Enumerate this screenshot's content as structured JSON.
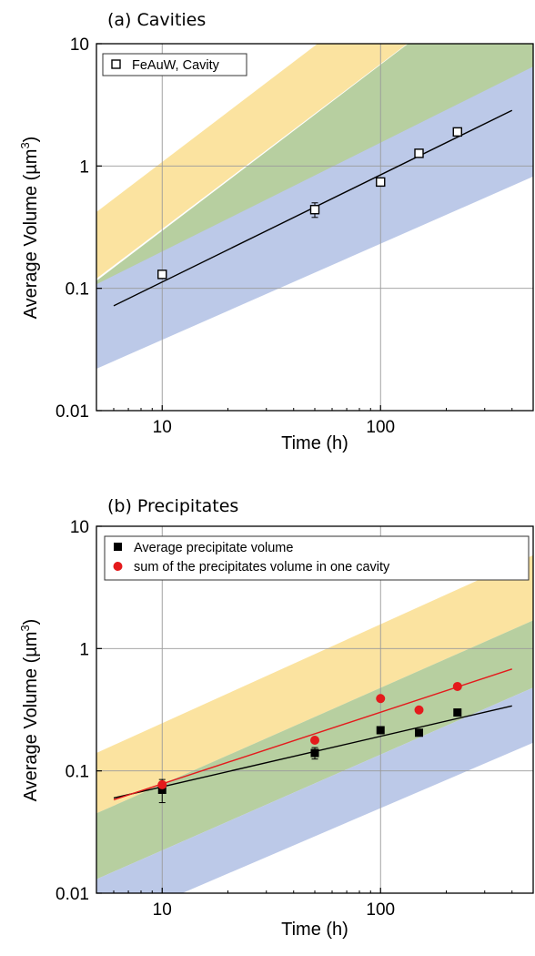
{
  "chart_data": [
    {
      "type": "scatter",
      "title": "(a) Cavities",
      "xlabel": "Time (h)",
      "ylabel_main": "Average Volume (",
      "ylabel_unit": "µm",
      "ylabel_sup": "3",
      "ylabel_close": ")",
      "xscale": "log",
      "yscale": "log",
      "xlim": [
        5,
        500
      ],
      "ylim": [
        0.01,
        10
      ],
      "xticks": [
        10,
        100
      ],
      "xtick_labels": [
        "10",
        "100"
      ],
      "yticks": [
        0.01,
        0.1,
        1,
        10
      ],
      "ytick_labels": [
        "0.01",
        "0.1",
        "1",
        "10"
      ],
      "grid": true,
      "legend_position": "top-left",
      "series": [
        {
          "name": "FeAuW, Cavity",
          "marker": "open-square",
          "color": "#000000",
          "x": [
            10,
            50,
            100,
            150,
            225
          ],
          "y": [
            0.13,
            0.44,
            0.74,
            1.27,
            1.9
          ],
          "yerr": [
            0,
            0.06,
            0.05,
            0.06,
            0.08
          ]
        }
      ],
      "fit_lines": [
        {
          "x": [
            6,
            400
          ],
          "y": [
            0.072,
            2.85
          ],
          "color": "#000000"
        }
      ],
      "bands": [
        {
          "color": "#fbe3a0",
          "lower": [
            [
              5,
              0.12
            ],
            [
              500,
              60
            ]
          ],
          "upper": [
            [
              5,
              0.42
            ],
            [
              500,
              220
            ]
          ]
        },
        {
          "color": "#b7cfa0",
          "lower": [
            [
              5,
              0.026
            ],
            [
              500,
              6.5
            ]
          ],
          "upper": [
            [
              5,
              0.115
            ],
            [
              500,
              60
            ]
          ]
        },
        {
          "color": "#bcc9e8",
          "lower": [
            [
              5,
              0.022
            ],
            [
              500,
              0.82
            ]
          ],
          "upper": [
            [
              5,
              0.108
            ],
            [
              500,
              6.5
            ]
          ]
        }
      ]
    },
    {
      "type": "scatter",
      "title": "(b) Precipitates",
      "xlabel": "Time (h)",
      "ylabel_main": "Average Volume (",
      "ylabel_unit": "µm",
      "ylabel_sup": "3",
      "ylabel_close": ")",
      "xscale": "log",
      "yscale": "log",
      "xlim": [
        5,
        500
      ],
      "ylim": [
        0.01,
        10
      ],
      "xticks": [
        10,
        100
      ],
      "xtick_labels": [
        "10",
        "100"
      ],
      "yticks": [
        0.01,
        0.1,
        1,
        10
      ],
      "ytick_labels": [
        "0.01",
        "0.1",
        "1",
        "10"
      ],
      "grid": true,
      "legend_position": "top",
      "series": [
        {
          "name": "Average precipitate volume",
          "marker": "filled-square",
          "color": "#000000",
          "x": [
            10,
            50,
            100,
            150,
            225
          ],
          "y": [
            0.07,
            0.14,
            0.215,
            0.205,
            0.3
          ],
          "yerr": [
            0.015,
            0.015,
            0.01,
            0.01,
            0.01
          ]
        },
        {
          "name": "sum of the precipitates volume in one cavity",
          "marker": "filled-circle",
          "color": "#e41a1c",
          "x": [
            10,
            50,
            100,
            150,
            225
          ],
          "y": [
            0.077,
            0.178,
            0.39,
            0.315,
            0.49
          ],
          "yerr": [
            0,
            0,
            0,
            0,
            0
          ]
        }
      ],
      "fit_lines": [
        {
          "x": [
            6,
            400
          ],
          "y": [
            0.06,
            0.34
          ],
          "color": "#000000"
        },
        {
          "x": [
            6,
            400
          ],
          "y": [
            0.058,
            0.68
          ],
          "color": "#e41a1c"
        }
      ],
      "bands": [
        {
          "color": "#fbe3a0",
          "lower": [
            [
              5,
              0.045
            ],
            [
              500,
              1.7
            ]
          ],
          "upper": [
            [
              5,
              0.14
            ],
            [
              500,
              5.8
            ]
          ]
        },
        {
          "color": "#b7cfa0",
          "lower": [
            [
              5,
              0.013
            ],
            [
              500,
              0.48
            ]
          ],
          "upper": [
            [
              5,
              0.045
            ],
            [
              500,
              1.7
            ]
          ]
        },
        {
          "color": "#bcc9e8",
          "lower": [
            [
              5,
              0.005
            ],
            [
              500,
              0.17
            ]
          ],
          "upper": [
            [
              5,
              0.013
            ],
            [
              500,
              0.48
            ]
          ]
        }
      ]
    }
  ]
}
